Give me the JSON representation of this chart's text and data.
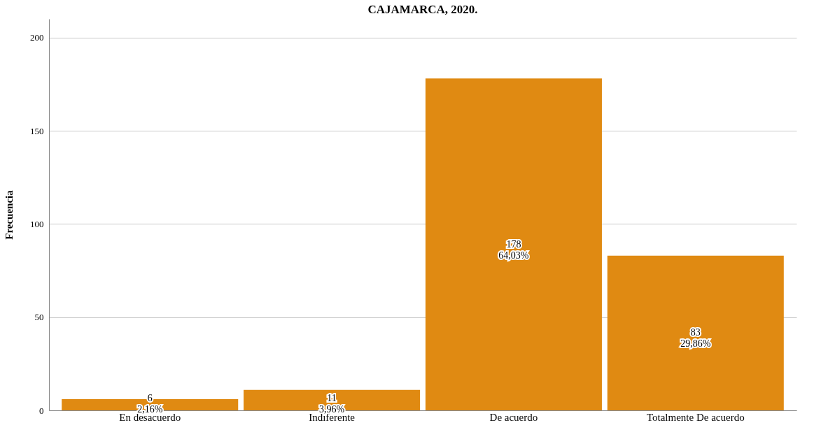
{
  "chart_data": {
    "type": "bar",
    "title": "CAJAMARCA, 2020.",
    "ylabel": "Frecuencia",
    "categories": [
      "En desacuerdo",
      "Indiferente",
      "De acuerdo",
      "Totalmente De acuerdo"
    ],
    "values": [
      6,
      11,
      178,
      83
    ],
    "value_labels": [
      "6\n2,16%",
      "11\n3,96%",
      "178\n64,03%",
      "83\n29,86%"
    ],
    "color": "#e08a12",
    "ylim": [
      0,
      210
    ],
    "yticks": [
      0,
      50,
      100,
      150,
      200
    ],
    "grid": "y"
  }
}
